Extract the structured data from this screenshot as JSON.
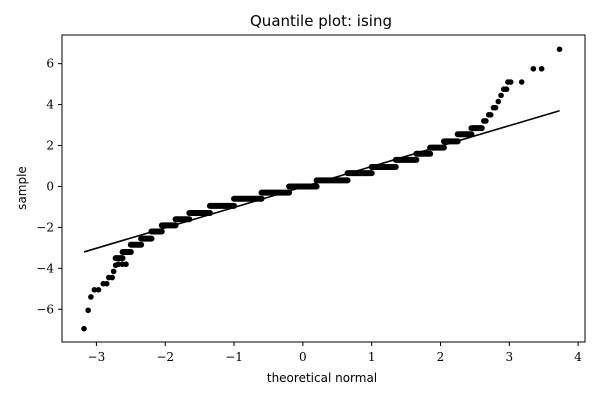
{
  "chart_data": {
    "type": "scatter",
    "title": "Quantile plot: ising",
    "xlabel": "theoretical normal",
    "ylabel": "sample",
    "xlim": [
      -3.5,
      4.1
    ],
    "ylim": [
      -7.6,
      7.4
    ],
    "xticks": [
      -3,
      -2,
      -1,
      0,
      1,
      2,
      3,
      4
    ],
    "yticks": [
      -6,
      -4,
      -2,
      0,
      2,
      4,
      6
    ],
    "xtick_labels": [
      "−3",
      "−2",
      "−1",
      "0",
      "1",
      "2",
      "3",
      "4"
    ],
    "ytick_labels": [
      "−6",
      "−4",
      "−2",
      "0",
      "2",
      "4",
      "6"
    ],
    "grid": false,
    "legend": "none",
    "series": [
      {
        "kind": "points",
        "color": "#000000",
        "segments": [
          {
            "y": -0.6,
            "x_start": -1.0,
            "x_end": -0.6
          },
          {
            "y": -0.3,
            "x_start": -0.6,
            "x_end": -0.2
          },
          {
            "y": 0.0,
            "x_start": -0.2,
            "x_end": 0.2
          },
          {
            "y": 0.3,
            "x_start": 0.2,
            "x_end": 0.65
          },
          {
            "y": 0.65,
            "x_start": 0.65,
            "x_end": 1.0
          },
          {
            "y": 0.95,
            "x_start": 1.0,
            "x_end": 1.35
          },
          {
            "y": 1.3,
            "x_start": 1.35,
            "x_end": 1.65
          },
          {
            "y": 1.6,
            "x_start": 1.65,
            "x_end": 1.85
          },
          {
            "y": 1.9,
            "x_start": 1.85,
            "x_end": 2.05
          },
          {
            "y": 2.2,
            "x_start": 2.05,
            "x_end": 2.25
          },
          {
            "y": 2.55,
            "x_start": 2.25,
            "x_end": 2.45
          },
          {
            "y": 2.85,
            "x_start": 2.45,
            "x_end": 2.6
          },
          {
            "y": -0.95,
            "x_start": -1.35,
            "x_end": -1.0
          },
          {
            "y": -1.3,
            "x_start": -1.65,
            "x_end": -1.35
          },
          {
            "y": -1.6,
            "x_start": -1.85,
            "x_end": -1.65
          },
          {
            "y": -1.9,
            "x_start": -2.05,
            "x_end": -1.85
          },
          {
            "y": -2.2,
            "x_start": -2.2,
            "x_end": -2.05
          },
          {
            "y": -2.55,
            "x_start": -2.35,
            "x_end": -2.2
          },
          {
            "y": -2.85,
            "x_start": -2.5,
            "x_end": -2.35
          },
          {
            "y": -3.2,
            "x_start": -2.62,
            "x_end": -2.5
          },
          {
            "y": -3.5,
            "x_start": -2.72,
            "x_end": -2.62
          }
        ],
        "points": [
          [
            -3.18,
            -6.95
          ],
          [
            -3.12,
            -6.05
          ],
          [
            -3.08,
            -5.4
          ],
          [
            -3.03,
            -5.05
          ],
          [
            -2.97,
            -5.05
          ],
          [
            -2.9,
            -4.75
          ],
          [
            -2.85,
            -4.75
          ],
          [
            -2.82,
            -4.45
          ],
          [
            -2.77,
            -4.45
          ],
          [
            -2.75,
            -4.15
          ],
          [
            -2.72,
            -3.85
          ],
          [
            -2.68,
            -3.8
          ],
          [
            -2.62,
            -3.8
          ],
          [
            -2.57,
            -3.8
          ],
          [
            2.63,
            3.2
          ],
          [
            2.66,
            3.2
          ],
          [
            2.7,
            3.5
          ],
          [
            2.73,
            3.5
          ],
          [
            2.77,
            3.85
          ],
          [
            2.8,
            3.85
          ],
          [
            2.84,
            4.15
          ],
          [
            2.88,
            4.45
          ],
          [
            2.92,
            4.75
          ],
          [
            2.96,
            4.75
          ],
          [
            2.98,
            5.1
          ],
          [
            3.02,
            5.1
          ],
          [
            3.18,
            5.1
          ],
          [
            3.35,
            5.75
          ],
          [
            3.47,
            5.75
          ],
          [
            3.73,
            6.7
          ]
        ]
      },
      {
        "kind": "line",
        "color": "#000000",
        "x": [
          -3.18,
          3.73
        ],
        "y": [
          -3.2,
          3.7
        ]
      }
    ]
  }
}
